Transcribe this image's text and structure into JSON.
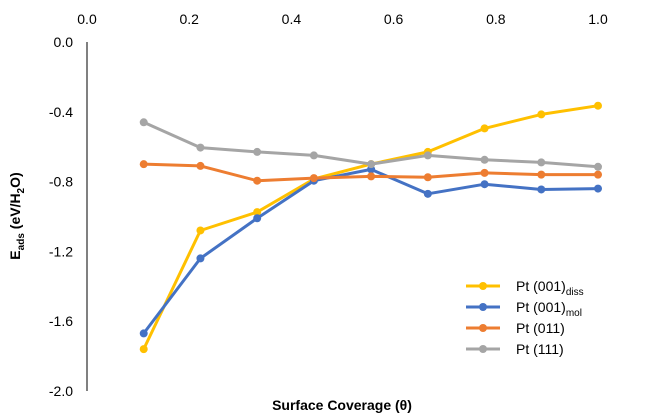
{
  "chart_data": {
    "type": "line",
    "xlabel": "Surface Coverage (θ)",
    "ylabel": {
      "parts": [
        {
          "text": "E",
          "sub": false
        },
        {
          "text": "ads",
          "sub": true
        },
        {
          "text": " (eV/H",
          "sub": false
        },
        {
          "text": "2",
          "sub": true
        },
        {
          "text": "O)",
          "sub": false
        }
      ]
    },
    "xlim": [
      0.0,
      1.0
    ],
    "ylim": [
      -2.0,
      0.0
    ],
    "x_ticks": [
      "0.0",
      "0.2",
      "0.4",
      "0.6",
      "0.8",
      "1.0"
    ],
    "y_ticks": [
      "0.0",
      "-0.4",
      "-0.8",
      "-1.2",
      "-1.6",
      "-2.0"
    ],
    "x_axis_position": "top",
    "grid": false,
    "legend_position": "bottom-right",
    "series": [
      {
        "name": "Pt (001)",
        "name_sub": "diss",
        "color": "#FFC000",
        "x": [
          0.111,
          0.222,
          0.333,
          0.444,
          0.556,
          0.667,
          0.778,
          0.889,
          1.0
        ],
        "y": [
          -1.76,
          -1.08,
          -0.975,
          -0.785,
          -0.7,
          -0.63,
          -0.495,
          -0.415,
          -0.365
        ]
      },
      {
        "name": "Pt (001)",
        "name_sub": "mol",
        "color": "#4472C4",
        "x": [
          0.111,
          0.222,
          0.333,
          0.444,
          0.556,
          0.667,
          0.778,
          0.889,
          1.0
        ],
        "y": [
          -1.67,
          -1.24,
          -1.01,
          -0.795,
          -0.73,
          -0.87,
          -0.815,
          -0.845,
          -0.84
        ]
      },
      {
        "name": "Pt (011)",
        "name_sub": "",
        "color": "#ED7D31",
        "x": [
          0.111,
          0.222,
          0.333,
          0.444,
          0.556,
          0.667,
          0.778,
          0.889,
          1.0
        ],
        "y": [
          -0.7,
          -0.71,
          -0.795,
          -0.78,
          -0.77,
          -0.775,
          -0.75,
          -0.76,
          -0.76
        ]
      },
      {
        "name": "Pt (111)",
        "name_sub": "",
        "color": "#A5A5A5",
        "x": [
          0.111,
          0.222,
          0.333,
          0.444,
          0.556,
          0.667,
          0.778,
          0.889,
          1.0
        ],
        "y": [
          -0.46,
          -0.605,
          -0.63,
          -0.65,
          -0.7,
          -0.65,
          -0.675,
          -0.69,
          -0.715
        ]
      }
    ]
  }
}
